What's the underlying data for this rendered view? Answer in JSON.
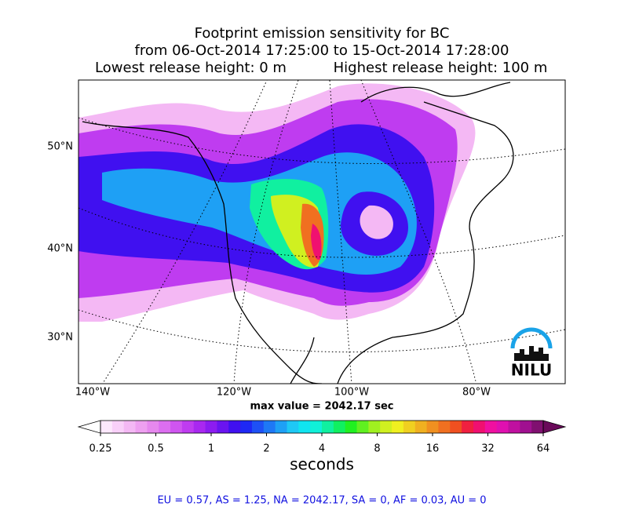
{
  "figure": {
    "title": [
      "Footprint emission sensitivity for BC",
      "from 06-Oct-2014 17:25:00 to 15-Oct-2014 17:28:00"
    ],
    "release_heights": [
      "Lowest release height: 0 m",
      "Highest release height: 100 m"
    ],
    "lat_labels": [
      "50°N",
      "40°N",
      "30°N"
    ],
    "lon_labels": [
      "140°W",
      "120°W",
      "100°W",
      "80°W"
    ],
    "max_value_label": "max value = 2042.17 sec",
    "logo": "NILU",
    "colorbar": {
      "label": "seconds",
      "scale": "log",
      "lim": [
        0.25,
        64
      ],
      "ticks": [
        0.25,
        0.5,
        1,
        2,
        4,
        8,
        16,
        32,
        64
      ],
      "under_color": "#ffffff",
      "over_color": "#6a0a5a",
      "colors": [
        "#fde8fd",
        "#f9d0f9",
        "#f4b8f4",
        "#eea0f0",
        "#e688ee",
        "#dc6ef0",
        "#cf55f0",
        "#bf3cf0",
        "#a928f0",
        "#8c1cf0",
        "#6a14f0",
        "#4010f0",
        "#1e28f5",
        "#1e50f5",
        "#1e78f5",
        "#1ea0f5",
        "#1ec8f5",
        "#10e4f0",
        "#10f0d8",
        "#10f0a0",
        "#10f060",
        "#20f020",
        "#60f020",
        "#a0f020",
        "#d0f020",
        "#f0f020",
        "#f0d020",
        "#f0b020",
        "#f09020",
        "#f07020",
        "#f05020",
        "#f02040",
        "#f01070",
        "#f010a0",
        "#e010b0",
        "#c010a0",
        "#a01090",
        "#801070"
      ]
    },
    "region_summary": "EU = 0.57,  AS = 1.25,  NA = 2042.17,  SA = 0,  AF = 0.03,  AU = 0"
  }
}
